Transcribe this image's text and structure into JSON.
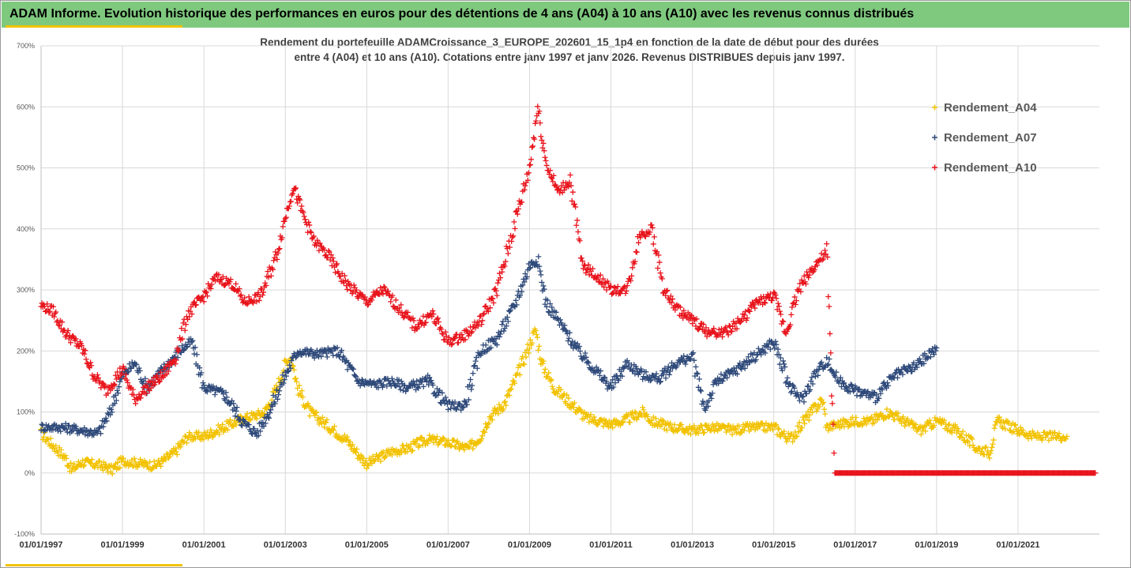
{
  "header": {
    "title": "ADAM Informe. Evolution historique des performances en euros pour des détentions de 4 ans (A04) à 10 ans (A10) avec les revenus connus distribués"
  },
  "colors": {
    "header_bg": "#7fc97f",
    "accent": "#f2c200",
    "a04": "#f2c200",
    "a07": "#2f4a7a",
    "a10": "#e8141c"
  },
  "chart_data": {
    "type": "scatter",
    "title": "Rendement du portefeuille ADAMCroissance_3_EUROPE_202601_15_1p4  en fonction de la date de début pour des durées",
    "subtitle": "entre 4 (A04) et 10 ans (A10). Cotations entre janv 1997 et janv 2026. Revenus DISTRIBUES depuis janv 1997.",
    "xlabel": "",
    "ylabel": "",
    "x_range": [
      "1997-01-01",
      "2023-01-01"
    ],
    "ylim": [
      -100,
      700
    ],
    "y_ticks": [
      "-100%",
      "0%",
      "100%",
      "200%",
      "300%",
      "400%",
      "500%",
      "600%",
      "700%"
    ],
    "y_tick_values": [
      -100,
      0,
      100,
      200,
      300,
      400,
      500,
      600,
      700
    ],
    "x_tick_labels": [
      "01/01/1997",
      "01/01/1999",
      "01/01/2001",
      "01/01/2003",
      "01/01/2005",
      "01/01/2007",
      "01/01/2009",
      "01/01/2011",
      "01/01/2013",
      "01/01/2015",
      "01/01/2017",
      "01/01/2019",
      "01/01/2021"
    ],
    "x_tick_years": [
      1997,
      1999,
      2001,
      2003,
      2005,
      2007,
      2009,
      2011,
      2013,
      2015,
      2017,
      2019,
      2021
    ],
    "grid": true,
    "legend_position": "top-right",
    "series": [
      {
        "name": "Rendement_A04",
        "color": "#f2c200",
        "points": [
          [
            1997.0,
            65
          ],
          [
            1997.3,
            45
          ],
          [
            1997.6,
            25
          ],
          [
            1997.75,
            5
          ],
          [
            1998.0,
            18
          ],
          [
            1998.5,
            12
          ],
          [
            1998.75,
            5
          ],
          [
            1999.0,
            20
          ],
          [
            1999.5,
            15
          ],
          [
            1999.8,
            12
          ],
          [
            2000.0,
            20
          ],
          [
            2000.3,
            35
          ],
          [
            2000.6,
            60
          ],
          [
            2001.0,
            60
          ],
          [
            2001.5,
            75
          ],
          [
            2002.0,
            90
          ],
          [
            2002.3,
            95
          ],
          [
            2002.5,
            100
          ],
          [
            2002.8,
            140
          ],
          [
            2003.0,
            180
          ],
          [
            2003.15,
            190
          ],
          [
            2003.3,
            140
          ],
          [
            2003.6,
            100
          ],
          [
            2004.0,
            80
          ],
          [
            2004.5,
            55
          ],
          [
            2004.8,
            30
          ],
          [
            2005.0,
            15
          ],
          [
            2005.3,
            25
          ],
          [
            2005.6,
            35
          ],
          [
            2006.0,
            40
          ],
          [
            2006.5,
            55
          ],
          [
            2007.0,
            50
          ],
          [
            2007.5,
            40
          ],
          [
            2007.8,
            60
          ],
          [
            2008.0,
            90
          ],
          [
            2008.4,
            115
          ],
          [
            2008.7,
            160
          ],
          [
            2009.0,
            210
          ],
          [
            2009.15,
            235
          ],
          [
            2009.3,
            180
          ],
          [
            2009.6,
            140
          ],
          [
            2010.0,
            115
          ],
          [
            2010.4,
            90
          ],
          [
            2011.0,
            80
          ],
          [
            2011.3,
            85
          ],
          [
            2011.8,
            100
          ],
          [
            2012.0,
            85
          ],
          [
            2012.5,
            75
          ],
          [
            2013.0,
            70
          ],
          [
            2013.5,
            75
          ],
          [
            2014.0,
            70
          ],
          [
            2014.5,
            75
          ],
          [
            2015.0,
            75
          ],
          [
            2015.4,
            55
          ],
          [
            2015.8,
            90
          ],
          [
            2016.2,
            120
          ],
          [
            2016.3,
            75
          ],
          [
            2016.6,
            80
          ],
          [
            2017.0,
            85
          ],
          [
            2017.4,
            85
          ],
          [
            2017.8,
            100
          ],
          [
            2018.2,
            85
          ],
          [
            2018.6,
            70
          ],
          [
            2019.0,
            85
          ],
          [
            2019.5,
            70
          ],
          [
            2020.0,
            40
          ],
          [
            2020.3,
            35
          ],
          [
            2020.5,
            85
          ],
          [
            2021.0,
            70
          ],
          [
            2021.4,
            60
          ],
          [
            2021.8,
            60
          ],
          [
            2022.2,
            60
          ]
        ]
      },
      {
        "name": "Rendement_A07",
        "color": "#2f4a7a",
        "points": [
          [
            1997.0,
            75
          ],
          [
            1997.5,
            75
          ],
          [
            1998.0,
            70
          ],
          [
            1998.4,
            65
          ],
          [
            1998.7,
            100
          ],
          [
            1999.0,
            160
          ],
          [
            1999.3,
            180
          ],
          [
            1999.6,
            140
          ],
          [
            2000.0,
            170
          ],
          [
            2000.4,
            200
          ],
          [
            2000.7,
            215
          ],
          [
            2001.0,
            140
          ],
          [
            2001.5,
            130
          ],
          [
            2002.0,
            80
          ],
          [
            2002.3,
            65
          ],
          [
            2002.6,
            100
          ],
          [
            2003.0,
            160
          ],
          [
            2003.3,
            200
          ],
          [
            2003.8,
            195
          ],
          [
            2004.3,
            200
          ],
          [
            2004.8,
            150
          ],
          [
            2005.2,
            145
          ],
          [
            2005.6,
            150
          ],
          [
            2006.0,
            140
          ],
          [
            2006.5,
            150
          ],
          [
            2007.0,
            110
          ],
          [
            2007.4,
            110
          ],
          [
            2007.8,
            200
          ],
          [
            2008.2,
            220
          ],
          [
            2008.6,
            270
          ],
          [
            2009.0,
            340
          ],
          [
            2009.2,
            350
          ],
          [
            2009.4,
            280
          ],
          [
            2009.8,
            240
          ],
          [
            2010.2,
            200
          ],
          [
            2010.6,
            170
          ],
          [
            2011.0,
            140
          ],
          [
            2011.4,
            180
          ],
          [
            2011.8,
            160
          ],
          [
            2012.2,
            155
          ],
          [
            2012.6,
            180
          ],
          [
            2013.0,
            190
          ],
          [
            2013.3,
            105
          ],
          [
            2013.6,
            150
          ],
          [
            2014.0,
            165
          ],
          [
            2014.5,
            190
          ],
          [
            2015.0,
            215
          ],
          [
            2015.4,
            140
          ],
          [
            2015.7,
            120
          ],
          [
            2016.0,
            160
          ],
          [
            2016.3,
            185
          ],
          [
            2016.6,
            150
          ],
          [
            2017.0,
            135
          ],
          [
            2017.5,
            125
          ],
          [
            2018.0,
            160
          ],
          [
            2018.5,
            175
          ],
          [
            2019.0,
            205
          ]
        ]
      },
      {
        "name": "Rendement_A10",
        "color": "#e8141c",
        "points": [
          [
            1997.0,
            275
          ],
          [
            1997.3,
            265
          ],
          [
            1997.6,
            230
          ],
          [
            1998.0,
            205
          ],
          [
            1998.3,
            160
          ],
          [
            1998.6,
            135
          ],
          [
            1999.0,
            170
          ],
          [
            1999.3,
            120
          ],
          [
            1999.6,
            140
          ],
          [
            2000.0,
            160
          ],
          [
            2000.3,
            190
          ],
          [
            2000.6,
            260
          ],
          [
            2001.0,
            290
          ],
          [
            2001.3,
            320
          ],
          [
            2001.7,
            310
          ],
          [
            2002.0,
            280
          ],
          [
            2002.4,
            290
          ],
          [
            2002.8,
            360
          ],
          [
            2003.0,
            420
          ],
          [
            2003.2,
            470
          ],
          [
            2003.4,
            430
          ],
          [
            2003.7,
            380
          ],
          [
            2004.0,
            360
          ],
          [
            2004.5,
            310
          ],
          [
            2005.0,
            280
          ],
          [
            2005.4,
            300
          ],
          [
            2005.8,
            270
          ],
          [
            2006.2,
            240
          ],
          [
            2006.6,
            260
          ],
          [
            2007.0,
            215
          ],
          [
            2007.4,
            225
          ],
          [
            2007.8,
            250
          ],
          [
            2008.2,
            300
          ],
          [
            2008.6,
            400
          ],
          [
            2009.0,
            500
          ],
          [
            2009.2,
            600
          ],
          [
            2009.4,
            510
          ],
          [
            2009.7,
            460
          ],
          [
            2010.0,
            480
          ],
          [
            2010.3,
            340
          ],
          [
            2010.7,
            320
          ],
          [
            2011.0,
            300
          ],
          [
            2011.4,
            300
          ],
          [
            2011.7,
            390
          ],
          [
            2012.0,
            400
          ],
          [
            2012.3,
            300
          ],
          [
            2012.6,
            270
          ],
          [
            2013.0,
            250
          ],
          [
            2013.4,
            230
          ],
          [
            2013.8,
            230
          ],
          [
            2014.2,
            250
          ],
          [
            2014.6,
            280
          ],
          [
            2015.0,
            290
          ],
          [
            2015.3,
            230
          ],
          [
            2015.6,
            300
          ],
          [
            2016.0,
            340
          ],
          [
            2016.3,
            360
          ],
          [
            2016.5,
            0
          ],
          [
            2017.0,
            0
          ],
          [
            2018.0,
            0
          ],
          [
            2019.0,
            0
          ],
          [
            2020.0,
            0
          ],
          [
            2021.0,
            0
          ],
          [
            2022.0,
            0
          ],
          [
            2022.9,
            0
          ]
        ]
      }
    ]
  }
}
